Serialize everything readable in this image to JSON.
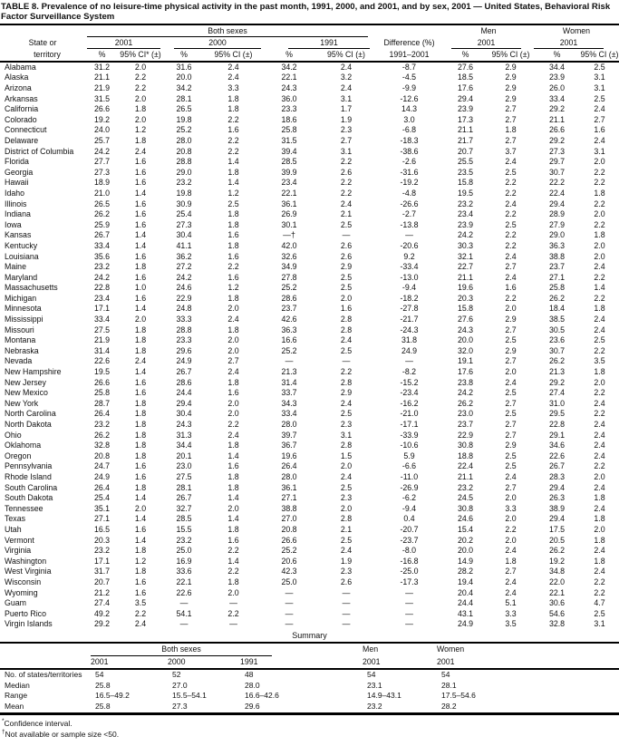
{
  "title": "TABLE 8. Prevalence of no leisure-time physical activity in the past month, 1991, 2000, and 2001, and by sex, 2001 — United States, Behavioral Risk Factor Surveillance System",
  "header": {
    "state_label_line1": "State or",
    "state_label_line2": "territory",
    "group_both": "Both sexes",
    "group_men": "Men",
    "group_women": "Women",
    "year_2001": "2001",
    "year_2000": "2000",
    "year_1991": "1991",
    "year_men": "2001",
    "year_women": "2001",
    "difference_label": "Difference (%)",
    "difference_sub": "1991–2001",
    "pct": "%",
    "ci_star": "95% CI* (±)",
    "ci": "95% CI (±)"
  },
  "columns": [
    "State or territory",
    "2001 %",
    "2001 95% CI",
    "2000 %",
    "2000 95% CI",
    "1991 %",
    "1991 95% CI",
    "Difference (%) 1991–2001",
    "Men 2001 %",
    "Men 2001 95% CI",
    "Women 2001 %",
    "Women 2001 95% CI"
  ],
  "rows": [
    [
      "Alabama",
      "31.2",
      "2.0",
      "31.6",
      "2.4",
      "34.2",
      "2.4",
      "-8.7",
      "27.6",
      "2.9",
      "34.4",
      "2.5"
    ],
    [
      "Alaska",
      "21.1",
      "2.2",
      "20.0",
      "2.4",
      "22.1",
      "3.2",
      "-4.5",
      "18.5",
      "2.9",
      "23.9",
      "3.1"
    ],
    [
      "Arizona",
      "21.9",
      "2.2",
      "34.2",
      "3.3",
      "24.3",
      "2.4",
      "-9.9",
      "17.6",
      "2.9",
      "26.0",
      "3.1"
    ],
    [
      "Arkansas",
      "31.5",
      "2.0",
      "28.1",
      "1.8",
      "36.0",
      "3.1",
      "-12.6",
      "29.4",
      "2.9",
      "33.4",
      "2.5"
    ],
    [
      "California",
      "26.6",
      "1.8",
      "26.5",
      "1.8",
      "23.3",
      "1.7",
      "14.3",
      "23.9",
      "2.7",
      "29.2",
      "2.4"
    ],
    [
      "Colorado",
      "19.2",
      "2.0",
      "19.8",
      "2.2",
      "18.6",
      "1.9",
      "3.0",
      "17.3",
      "2.7",
      "21.1",
      "2.7"
    ],
    [
      "Connecticut",
      "24.0",
      "1.2",
      "25.2",
      "1.6",
      "25.8",
      "2.3",
      "-6.8",
      "21.1",
      "1.8",
      "26.6",
      "1.6"
    ],
    [
      "Delaware",
      "25.7",
      "1.8",
      "28.0",
      "2.2",
      "31.5",
      "2.7",
      "-18.3",
      "21.7",
      "2.7",
      "29.2",
      "2.4"
    ],
    [
      "District of Columbia",
      "24.2",
      "2.4",
      "20.8",
      "2.2",
      "39.4",
      "3.1",
      "-38.6",
      "20.7",
      "3.7",
      "27.3",
      "3.1"
    ],
    [
      "Florida",
      "27.7",
      "1.6",
      "28.8",
      "1.4",
      "28.5",
      "2.2",
      "-2.6",
      "25.5",
      "2.4",
      "29.7",
      "2.0"
    ],
    [
      "Georgia",
      "27.3",
      "1.6",
      "29.0",
      "1.8",
      "39.9",
      "2.6",
      "-31.6",
      "23.5",
      "2.5",
      "30.7",
      "2.2"
    ],
    [
      "Hawaii",
      "18.9",
      "1.6",
      "23.2",
      "1.4",
      "23.4",
      "2.2",
      "-19.2",
      "15.8",
      "2.2",
      "22.2",
      "2.2"
    ],
    [
      "Idaho",
      "21.0",
      "1.4",
      "19.8",
      "1.2",
      "22.1",
      "2.2",
      "-4.8",
      "19.5",
      "2.2",
      "22.4",
      "1.8"
    ],
    [
      "Illinois",
      "26.5",
      "1.6",
      "30.9",
      "2.5",
      "36.1",
      "2.4",
      "-26.6",
      "23.2",
      "2.4",
      "29.4",
      "2.2"
    ],
    [
      "Indiana",
      "26.2",
      "1.6",
      "25.4",
      "1.8",
      "26.9",
      "2.1",
      "-2.7",
      "23.4",
      "2.2",
      "28.9",
      "2.0"
    ],
    [
      "Iowa",
      "25.9",
      "1.6",
      "27.3",
      "1.8",
      "30.1",
      "2.5",
      "-13.8",
      "23.9",
      "2.5",
      "27.9",
      "2.2"
    ],
    [
      "Kansas",
      "26.7",
      "1.4",
      "30.4",
      "1.6",
      "—†",
      "—",
      "—",
      "24.2",
      "2.2",
      "29.0",
      "1.8"
    ],
    [
      "Kentucky",
      "33.4",
      "1.4",
      "41.1",
      "1.8",
      "42.0",
      "2.6",
      "-20.6",
      "30.3",
      "2.2",
      "36.3",
      "2.0"
    ],
    [
      "Louisiana",
      "35.6",
      "1.6",
      "36.2",
      "1.6",
      "32.6",
      "2.6",
      "9.2",
      "32.1",
      "2.4",
      "38.8",
      "2.0"
    ],
    [
      "Maine",
      "23.2",
      "1.8",
      "27.2",
      "2.2",
      "34.9",
      "2.9",
      "-33.4",
      "22.7",
      "2.7",
      "23.7",
      "2.4"
    ],
    [
      "Maryland",
      "24.2",
      "1.6",
      "24.2",
      "1.6",
      "27.8",
      "2.5",
      "-13.0",
      "21.1",
      "2.4",
      "27.1",
      "2.2"
    ],
    [
      "Massachusetts",
      "22.8",
      "1.0",
      "24.6",
      "1.2",
      "25.2",
      "2.5",
      "-9.4",
      "19.6",
      "1.6",
      "25.8",
      "1.4"
    ],
    [
      "Michigan",
      "23.4",
      "1.6",
      "22.9",
      "1.8",
      "28.6",
      "2.0",
      "-18.2",
      "20.3",
      "2.2",
      "26.2",
      "2.2"
    ],
    [
      "Minnesota",
      "17.1",
      "1.4",
      "24.8",
      "2.0",
      "23.7",
      "1.6",
      "-27.8",
      "15.8",
      "2.0",
      "18.4",
      "1.8"
    ],
    [
      "Mississippi",
      "33.4",
      "2.0",
      "33.3",
      "2.4",
      "42.6",
      "2.8",
      "-21.7",
      "27.6",
      "2.9",
      "38.5",
      "2.4"
    ],
    [
      "Missouri",
      "27.5",
      "1.8",
      "28.8",
      "1.8",
      "36.3",
      "2.8",
      "-24.3",
      "24.3",
      "2.7",
      "30.5",
      "2.4"
    ],
    [
      "Montana",
      "21.9",
      "1.8",
      "23.3",
      "2.0",
      "16.6",
      "2.4",
      "31.8",
      "20.0",
      "2.5",
      "23.6",
      "2.5"
    ],
    [
      "Nebraska",
      "31.4",
      "1.8",
      "29.6",
      "2.0",
      "25.2",
      "2.5",
      "24.9",
      "32.0",
      "2.9",
      "30.7",
      "2.2"
    ],
    [
      "Nevada",
      "22.6",
      "2.4",
      "24.9",
      "2.7",
      "—",
      "—",
      "—",
      "19.1",
      "2.7",
      "26.2",
      "3.5"
    ],
    [
      "New Hampshire",
      "19.5",
      "1.4",
      "26.7",
      "2.4",
      "21.3",
      "2.2",
      "-8.2",
      "17.6",
      "2.0",
      "21.3",
      "1.8"
    ],
    [
      "New Jersey",
      "26.6",
      "1.6",
      "28.6",
      "1.8",
      "31.4",
      "2.8",
      "-15.2",
      "23.8",
      "2.4",
      "29.2",
      "2.0"
    ],
    [
      "New Mexico",
      "25.8",
      "1.6",
      "24.4",
      "1.6",
      "33.7",
      "2.9",
      "-23.4",
      "24.2",
      "2.5",
      "27.4",
      "2.2"
    ],
    [
      "New York",
      "28.7",
      "1.8",
      "29.4",
      "2.0",
      "34.3",
      "2.4",
      "-16.2",
      "26.2",
      "2.7",
      "31.0",
      "2.4"
    ],
    [
      "North Carolina",
      "26.4",
      "1.8",
      "30.4",
      "2.0",
      "33.4",
      "2.5",
      "-21.0",
      "23.0",
      "2.5",
      "29.5",
      "2.2"
    ],
    [
      "North Dakota",
      "23.2",
      "1.8",
      "24.3",
      "2.2",
      "28.0",
      "2.3",
      "-17.1",
      "23.7",
      "2.7",
      "22.8",
      "2.4"
    ],
    [
      "Ohio",
      "26.2",
      "1.8",
      "31.3",
      "2.4",
      "39.7",
      "3.1",
      "-33.9",
      "22.9",
      "2.7",
      "29.1",
      "2.4"
    ],
    [
      "Oklahoma",
      "32.8",
      "1.8",
      "34.4",
      "1.8",
      "36.7",
      "2.8",
      "-10.6",
      "30.8",
      "2.9",
      "34.6",
      "2.4"
    ],
    [
      "Oregon",
      "20.8",
      "1.8",
      "20.1",
      "1.4",
      "19.6",
      "1.5",
      "5.9",
      "18.8",
      "2.5",
      "22.6",
      "2.4"
    ],
    [
      "Pennsylvania",
      "24.7",
      "1.6",
      "23.0",
      "1.6",
      "26.4",
      "2.0",
      "-6.6",
      "22.4",
      "2.5",
      "26.7",
      "2.2"
    ],
    [
      "Rhode Island",
      "24.9",
      "1.6",
      "27.5",
      "1.8",
      "28.0",
      "2.4",
      "-11.0",
      "21.1",
      "2.4",
      "28.3",
      "2.0"
    ],
    [
      "South Carolina",
      "26.4",
      "1.8",
      "28.1",
      "1.8",
      "36.1",
      "2.5",
      "-26.9",
      "23.2",
      "2.7",
      "29.4",
      "2.4"
    ],
    [
      "South Dakota",
      "25.4",
      "1.4",
      "26.7",
      "1.4",
      "27.1",
      "2.3",
      "-6.2",
      "24.5",
      "2.0",
      "26.3",
      "1.8"
    ],
    [
      "Tennessee",
      "35.1",
      "2.0",
      "32.7",
      "2.0",
      "38.8",
      "2.0",
      "-9.4",
      "30.8",
      "3.3",
      "38.9",
      "2.4"
    ],
    [
      "Texas",
      "27.1",
      "1.4",
      "28.5",
      "1.4",
      "27.0",
      "2.8",
      "0.4",
      "24.6",
      "2.0",
      "29.4",
      "1.8"
    ],
    [
      "Utah",
      "16.5",
      "1.6",
      "15.5",
      "1.8",
      "20.8",
      "2.1",
      "-20.7",
      "15.4",
      "2.2",
      "17.5",
      "2.0"
    ],
    [
      "Vermont",
      "20.3",
      "1.4",
      "23.2",
      "1.6",
      "26.6",
      "2.5",
      "-23.7",
      "20.2",
      "2.0",
      "20.5",
      "1.8"
    ],
    [
      "Virginia",
      "23.2",
      "1.8",
      "25.0",
      "2.2",
      "25.2",
      "2.4",
      "-8.0",
      "20.0",
      "2.4",
      "26.2",
      "2.4"
    ],
    [
      "Washington",
      "17.1",
      "1.2",
      "16.9",
      "1.4",
      "20.6",
      "1.9",
      "-16.8",
      "14.9",
      "1.8",
      "19.2",
      "1.8"
    ],
    [
      "West Virginia",
      "31.7",
      "1.8",
      "33.6",
      "2.2",
      "42.3",
      "2.3",
      "-25.0",
      "28.2",
      "2.7",
      "34.8",
      "2.4"
    ],
    [
      "Wisconsin",
      "20.7",
      "1.6",
      "22.1",
      "1.8",
      "25.0",
      "2.6",
      "-17.3",
      "19.4",
      "2.4",
      "22.0",
      "2.2"
    ],
    [
      "Wyoming",
      "21.2",
      "1.6",
      "22.6",
      "2.0",
      "—",
      "—",
      "—",
      "20.4",
      "2.4",
      "22.1",
      "2.2"
    ],
    [
      "Guam",
      "27.4",
      "3.5",
      "—",
      "—",
      "—",
      "—",
      "—",
      "24.4",
      "5.1",
      "30.6",
      "4.7"
    ],
    [
      "Puerto Rico",
      "49.2",
      "2.2",
      "54.1",
      "2.2",
      "—",
      "—",
      "—",
      "43.1",
      "3.3",
      "54.6",
      "2.5"
    ],
    [
      "Virgin Islands",
      "29.2",
      "2.4",
      "—",
      "—",
      "—",
      "—",
      "—",
      "24.9",
      "3.5",
      "32.8",
      "3.1"
    ]
  ],
  "summary": {
    "section_label": "Summary",
    "group_both": "Both sexes",
    "group_men": "Men",
    "group_women": "Women",
    "year_2001": "2001",
    "year_2000": "2000",
    "year_1991": "1991",
    "year_men": "2001",
    "year_women": "2001",
    "rows": [
      [
        "No. of states/territories",
        "54",
        "52",
        "48",
        "54",
        "54"
      ],
      [
        "Median",
        "25.8",
        "27.0",
        "28.0",
        "23.1",
        "28.1"
      ],
      [
        "Range",
        "16.5–49.2",
        "15.5–54.1",
        "16.6–42.6",
        "14.9–43.1",
        "17.5–54.6"
      ],
      [
        "Mean",
        "25.8",
        "27.3",
        "29.6",
        "23.2",
        "28.2"
      ]
    ]
  },
  "footnotes": [
    {
      "marker": "*",
      "text": "Confidence interval."
    },
    {
      "marker": "†",
      "text": "Not available or sample size <50."
    }
  ]
}
